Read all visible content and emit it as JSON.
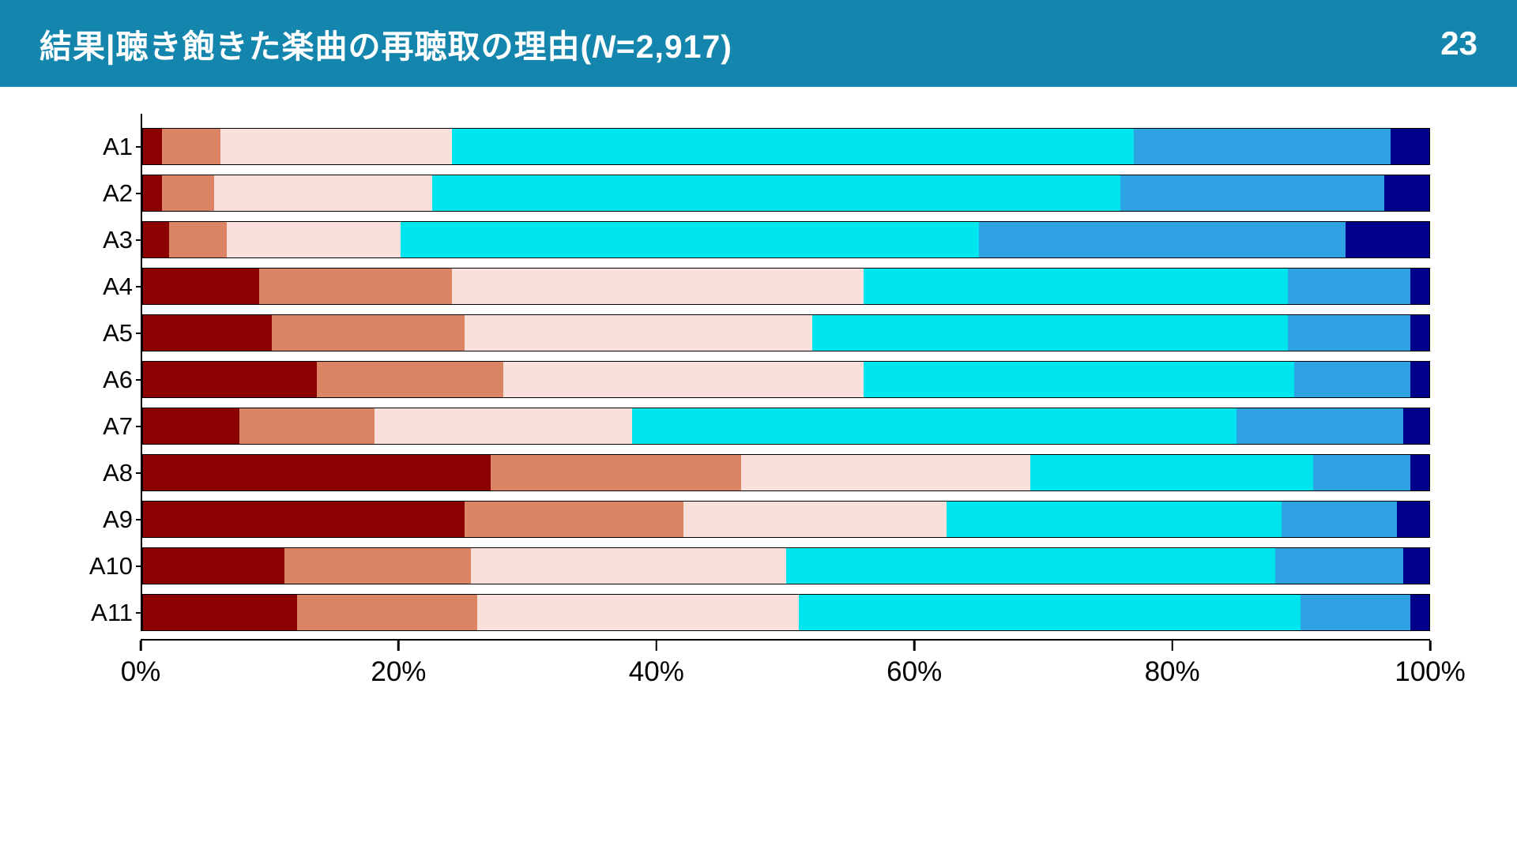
{
  "header": {
    "title_prefix": "結果|聴き飽きた楽曲の再聴取の理由(",
    "title_n": "N",
    "title_suffix": "=2,917)",
    "page_number": "23",
    "bg_color": "#1486AD"
  },
  "chart_data": {
    "type": "bar",
    "orientation": "horizontal",
    "stacked": true,
    "title": "結果|聴き飽きた楽曲の再聴取の理由(N=2,917)",
    "categories": [
      "A1",
      "A2",
      "A3",
      "A4",
      "A5",
      "A6",
      "A7",
      "A8",
      "A9",
      "A10",
      "A11"
    ],
    "series": [
      {
        "name": "dark-red",
        "color": "#8B0000",
        "values": [
          1.5,
          1.5,
          2,
          9,
          10,
          13.5,
          7.5,
          27,
          25,
          11,
          12
        ]
      },
      {
        "name": "salmon",
        "color": "#DB8565",
        "values": [
          4.5,
          4,
          4.5,
          15,
          15,
          14.5,
          10.5,
          19.5,
          17,
          14.5,
          14
        ]
      },
      {
        "name": "pale-pink",
        "color": "#FAE0DA",
        "values": [
          18,
          17,
          13.5,
          32,
          27,
          28,
          20,
          22.5,
          20.5,
          24.5,
          25
        ]
      },
      {
        "name": "cyan",
        "color": "#00E6EE",
        "values": [
          53,
          53.5,
          45,
          33,
          37,
          33.5,
          47,
          22,
          26,
          38,
          39
        ]
      },
      {
        "name": "light-blue",
        "color": "#2FA2E3",
        "values": [
          20,
          20.5,
          28.5,
          9.5,
          9.5,
          9,
          13,
          7.5,
          9,
          10,
          8.5
        ]
      },
      {
        "name": "navy",
        "color": "#00008B",
        "values": [
          3,
          3.5,
          6.5,
          1.5,
          1.5,
          1.5,
          2,
          1.5,
          2.5,
          2,
          1.5
        ]
      }
    ],
    "x_ticks": [
      "0%",
      "20%",
      "40%",
      "60%",
      "80%",
      "100%"
    ],
    "x_tick_values": [
      0,
      20,
      40,
      60,
      80,
      100
    ],
    "xlim": [
      0,
      100
    ],
    "legend": "none",
    "grid": false
  }
}
